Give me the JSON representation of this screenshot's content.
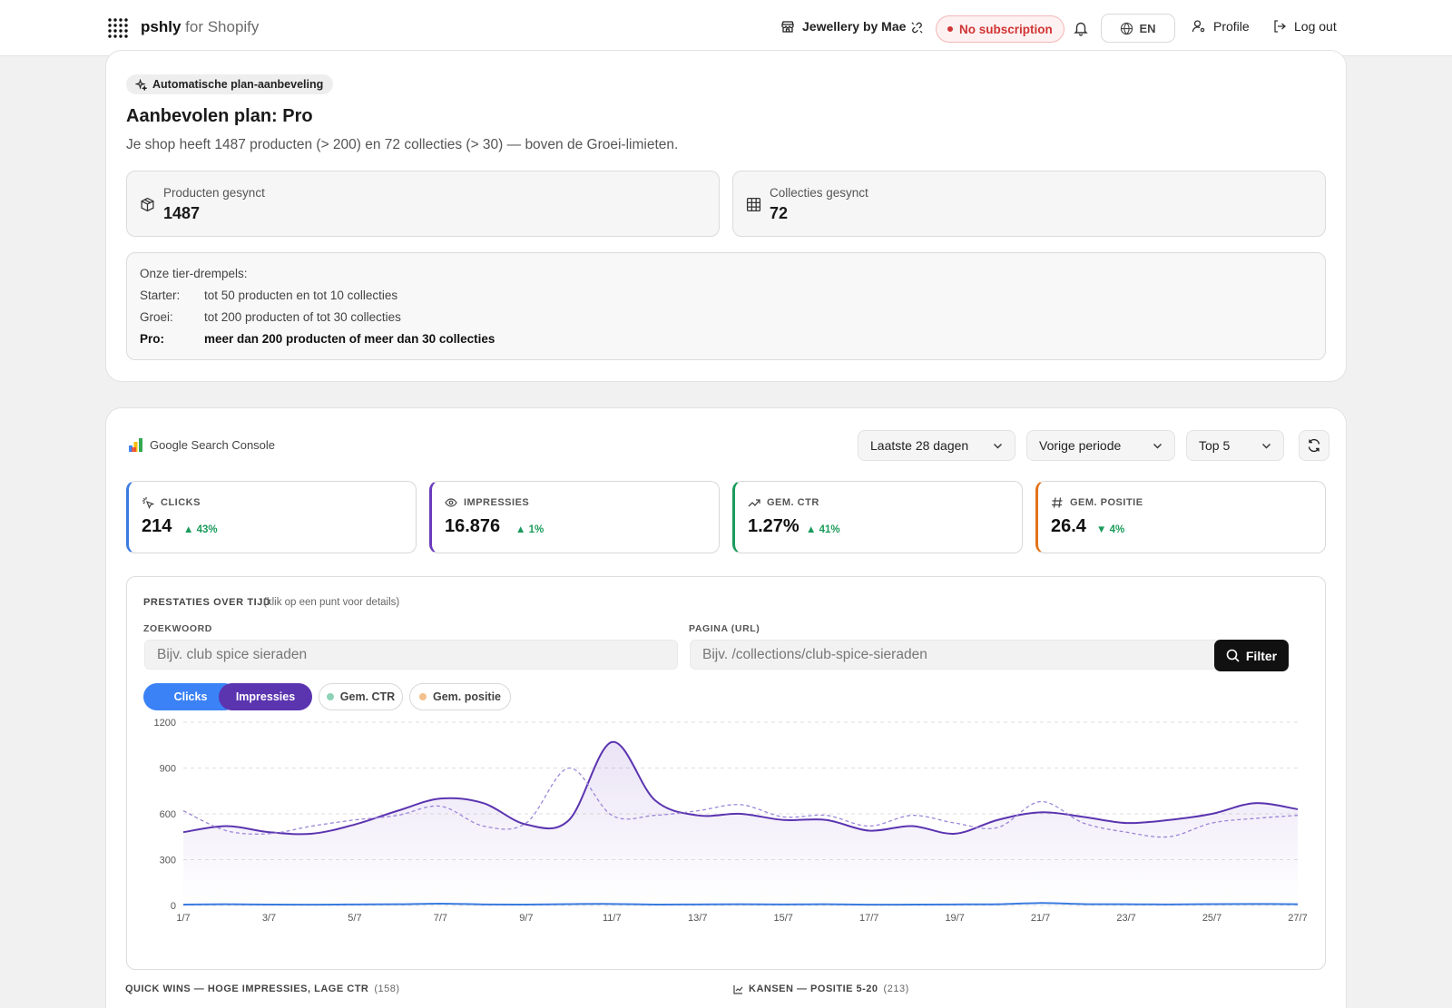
{
  "header": {
    "brand_name": "pshly",
    "brand_suffix": "for Shopify",
    "shop_name": "Jewellery by Mae",
    "subscription_status": "No subscription",
    "language": "EN",
    "profile_label": "Profile",
    "logout_label": "Log out"
  },
  "plan": {
    "badge": "Automatische plan-aanbeveling",
    "title": "Aanbevolen plan: Pro",
    "description": "Je shop heeft 1487 producten (> 200) en 72 collecties (> 30) — boven de Groei-limieten.",
    "products_label": "Producten gesynct",
    "products_value": "1487",
    "collections_label": "Collecties gesynct",
    "collections_value": "72",
    "tiers_title": "Onze tier-drempels:",
    "tiers": [
      {
        "name": "Starter:",
        "rule": "tot 50 producten en tot 10 collecties"
      },
      {
        "name": "Groei:",
        "rule": "tot 200 producten of tot 30 collecties"
      },
      {
        "name": "Pro:",
        "rule": "meer dan 200 producten of meer dan 30 collecties"
      }
    ]
  },
  "gsc": {
    "logo_text": "Google Search Console",
    "range": "Laatste 28 dagen",
    "compare": "Vorige periode",
    "top": "Top 5"
  },
  "kpis": [
    {
      "label": "CLICKS",
      "value": "214",
      "delta": "▲ 43%",
      "color": "#3b7be0"
    },
    {
      "label": "IMPRESSIES",
      "value": "16.876",
      "delta": "▲ 1%",
      "color": "#6a3bbd"
    },
    {
      "label": "GEM. CTR",
      "value": "1.27%",
      "delta": "▲ 41%",
      "color": "#1a9b5b"
    },
    {
      "label": "GEM. POSITIE",
      "value": "26.4",
      "delta": "▼ 4%",
      "color": "#e3731a"
    }
  ],
  "performance": {
    "title": "PRESTATIES OVER TIJD",
    "hint": "(klik op een punt voor details)",
    "keyword_label": "ZOEKWOORD",
    "keyword_placeholder": "Bijv. club spice sieraden",
    "page_label": "PAGINA (URL)",
    "page_placeholder": "Bijv. /collections/club-spice-sieraden",
    "filter_label": "Filter",
    "toggles": [
      {
        "label": "Clicks",
        "active": true,
        "color": "#3b82f6"
      },
      {
        "label": "Impressies",
        "active": true,
        "color": "#5b34b0"
      },
      {
        "label": "Gem. CTR",
        "active": false,
        "color": "#8fd3b6"
      },
      {
        "label": "Gem. positie",
        "active": false,
        "color": "#f2c08c"
      }
    ]
  },
  "chart_data": {
    "type": "line",
    "x": [
      "1/7",
      "2/7",
      "3/7",
      "4/7",
      "5/7",
      "6/7",
      "7/7",
      "8/7",
      "9/7",
      "10/7",
      "11/7",
      "12/7",
      "13/7",
      "14/7",
      "15/7",
      "16/7",
      "17/7",
      "18/7",
      "19/7",
      "20/7",
      "21/7",
      "22/7",
      "23/7",
      "24/7",
      "25/7",
      "26/7",
      "27/7"
    ],
    "x_tick_labels": [
      "1/7",
      "3/7",
      "5/7",
      "7/7",
      "9/7",
      "11/7",
      "13/7",
      "15/7",
      "17/7",
      "19/7",
      "21/7",
      "23/7",
      "25/7",
      "27/7"
    ],
    "y_ticks": [
      0,
      300,
      600,
      900,
      1200
    ],
    "ylim": [
      0,
      1200
    ],
    "series": [
      {
        "name": "Impressies",
        "color": "#5b34b0",
        "values": [
          480,
          520,
          480,
          470,
          530,
          620,
          700,
          670,
          530,
          560,
          1070,
          690,
          590,
          600,
          560,
          560,
          490,
          520,
          470,
          560,
          610,
          580,
          540,
          560,
          600,
          670,
          630
        ]
      },
      {
        "name": "Impressies (vorige periode)",
        "color": "#9c87d6",
        "dashed": true,
        "values": [
          620,
          490,
          470,
          520,
          560,
          590,
          650,
          520,
          540,
          900,
          590,
          590,
          620,
          660,
          580,
          590,
          520,
          590,
          540,
          510,
          680,
          540,
          480,
          450,
          540,
          570,
          590
        ]
      },
      {
        "name": "Clicks",
        "color": "#3b7be0",
        "values": [
          6,
          8,
          6,
          5,
          7,
          8,
          12,
          7,
          6,
          9,
          10,
          6,
          7,
          8,
          7,
          8,
          5,
          6,
          7,
          8,
          16,
          9,
          8,
          7,
          9,
          10,
          8
        ]
      }
    ]
  },
  "sections": {
    "quick_wins": "QUICK WINS — HOGE IMPRESSIES, LAGE CTR",
    "quick_wins_count": "(158)",
    "chances": "KANSEN — POSITIE 5-20",
    "chances_count": "(213)"
  }
}
